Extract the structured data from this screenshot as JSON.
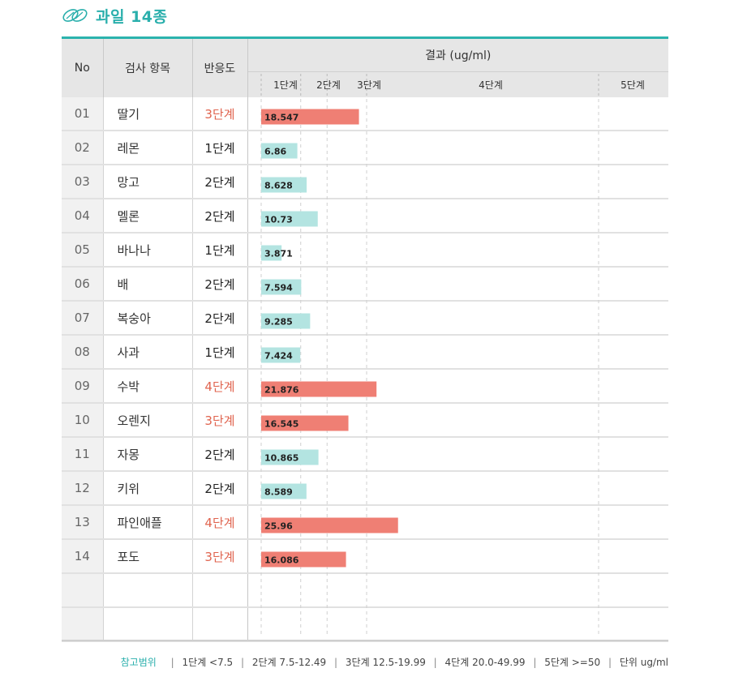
{
  "header": {
    "title": "과일 14종"
  },
  "table": {
    "columns": {
      "no": "No",
      "item": "검사 항목",
      "level": "반응도",
      "result": "결과 (ug/ml)"
    },
    "stage_labels": [
      "1단계",
      "2단계",
      "3단계",
      "4단계",
      "5단계"
    ],
    "rows": [
      {
        "no": "01",
        "item": "딸기",
        "level": "3단계",
        "value_label": "18.547"
      },
      {
        "no": "02",
        "item": "레몬",
        "level": "1단계",
        "value_label": "6.86"
      },
      {
        "no": "03",
        "item": "망고",
        "level": "2단계",
        "value_label": "8.628"
      },
      {
        "no": "04",
        "item": "멜론",
        "level": "2단계",
        "value_label": "10.73"
      },
      {
        "no": "05",
        "item": "바나나",
        "level": "1단계",
        "value_label": "3.871"
      },
      {
        "no": "06",
        "item": "배",
        "level": "2단계",
        "value_label": "7.594"
      },
      {
        "no": "07",
        "item": "복숭아",
        "level": "2단계",
        "value_label": "9.285"
      },
      {
        "no": "08",
        "item": "사과",
        "level": "1단계",
        "value_label": "7.424"
      },
      {
        "no": "09",
        "item": "수박",
        "level": "4단계",
        "value_label": "21.876"
      },
      {
        "no": "10",
        "item": "오렌지",
        "level": "3단계",
        "value_label": "16.545"
      },
      {
        "no": "11",
        "item": "자몽",
        "level": "2단계",
        "value_label": "10.865"
      },
      {
        "no": "12",
        "item": "키위",
        "level": "2단계",
        "value_label": "8.589"
      },
      {
        "no": "13",
        "item": "파인애플",
        "level": "4단계",
        "value_label": "25.96"
      },
      {
        "no": "14",
        "item": "포도",
        "level": "3단계",
        "value_label": "16.086"
      }
    ]
  },
  "footer": {
    "label": "참고범위",
    "ranges": [
      "1단계 <7.5",
      "2단계 7.5-12.49",
      "3단계 12.5-19.99",
      "4단계 20.0-49.99",
      "5단계 >=50",
      "단위 ug/ml"
    ]
  },
  "colors": {
    "accent": "#2aafac",
    "high": "#ef7f74",
    "low": "#b3e4e1",
    "level_high_text": "#e0644f"
  },
  "chart_data": {
    "type": "bar",
    "orientation": "horizontal",
    "categories": [
      "딸기",
      "레몬",
      "망고",
      "멜론",
      "바나나",
      "배",
      "복숭아",
      "사과",
      "수박",
      "오렌지",
      "자몽",
      "키위",
      "파인애플",
      "포도"
    ],
    "values": [
      18.547,
      6.86,
      8.628,
      10.73,
      3.871,
      7.594,
      9.285,
      7.424,
      21.876,
      16.545,
      10.865,
      8.589,
      25.96,
      16.086
    ],
    "levels": [
      "3단계",
      "1단계",
      "2단계",
      "2단계",
      "1단계",
      "2단계",
      "2단계",
      "1단계",
      "4단계",
      "3단계",
      "2단계",
      "2단계",
      "4단계",
      "3단계"
    ],
    "thresholds": [
      7.5,
      12.5,
      20.0,
      50
    ],
    "axis_unit": "ug/ml",
    "grid": true
  }
}
